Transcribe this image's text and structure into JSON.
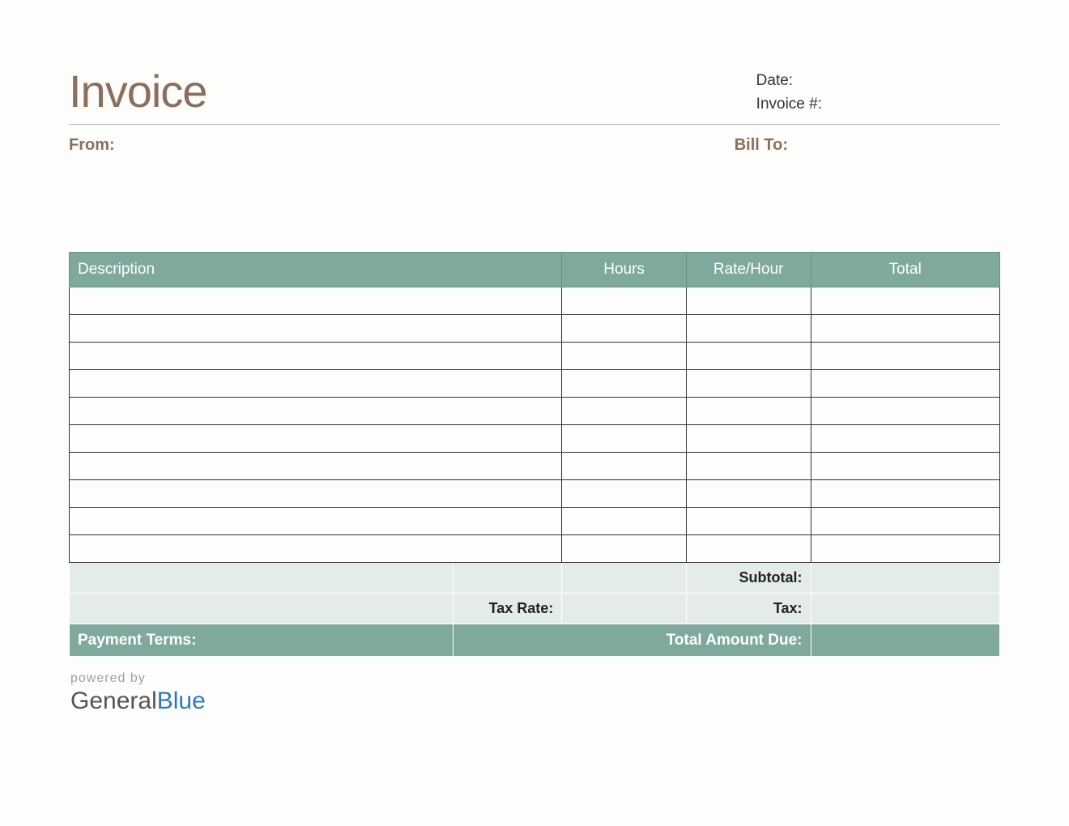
{
  "header": {
    "title": "Invoice",
    "date_label": "Date:",
    "invoice_num_label": "Invoice #:"
  },
  "parties": {
    "from_label": "From:",
    "bill_to_label": "Bill To:"
  },
  "table": {
    "type": "table",
    "columns": [
      {
        "label": "Description",
        "key": "description",
        "width_pct": 49.5,
        "align": "left"
      },
      {
        "label": "Hours",
        "key": "hours",
        "width_pct": 12.5,
        "align": "center"
      },
      {
        "label": "Rate/Hour",
        "key": "rate",
        "width_pct": 12.5,
        "align": "center"
      },
      {
        "label": "Total",
        "key": "total",
        "width_pct": 19,
        "align": "center"
      }
    ],
    "empty_row_count": 10,
    "rows": [
      [
        "",
        "",
        "",
        ""
      ],
      [
        "",
        "",
        "",
        ""
      ],
      [
        "",
        "",
        "",
        ""
      ],
      [
        "",
        "",
        "",
        ""
      ],
      [
        "",
        "",
        "",
        ""
      ],
      [
        "",
        "",
        "",
        ""
      ],
      [
        "",
        "",
        "",
        ""
      ],
      [
        "",
        "",
        "",
        ""
      ],
      [
        "",
        "",
        "",
        ""
      ],
      [
        "",
        "",
        "",
        ""
      ]
    ],
    "summary": {
      "subtotal_label": "Subtotal:",
      "tax_rate_label": "Tax Rate:",
      "tax_label": "Tax:",
      "payment_terms_label": "Payment Terms:",
      "total_due_label": "Total Amount Due:"
    }
  },
  "footer": {
    "powered_by": "powered by",
    "brand_part1": "General",
    "brand_part2": "Blue"
  },
  "styling": {
    "background_color": "#fdfdfb",
    "title_color": "#8b6f5c",
    "title_fontsize": 56,
    "meta_text_color": "#333333",
    "meta_fontsize": 19,
    "party_label_color": "#8b6f5c",
    "party_label_fontsize": 20,
    "table_header_bg": "#7fa99c",
    "table_header_text_color": "#ffffff",
    "table_header_border": "#6b9488",
    "table_header_fontsize": 19,
    "table_cell_border": "#333333",
    "table_row_height": 34,
    "summary_row_bg": "#e4ece9",
    "summary_row_border": "#ffffff",
    "summary_text_color": "#222222",
    "total_row_bg": "#7fa99c",
    "total_row_text_color": "#ffffff",
    "header_rule_color": "#b0b0b0",
    "powered_by_color": "#a0a0a0",
    "powered_by_fontsize": 16,
    "brand_fontsize": 30,
    "brand_general_color": "#555555",
    "brand_blue_color": "#2b7bbd"
  }
}
